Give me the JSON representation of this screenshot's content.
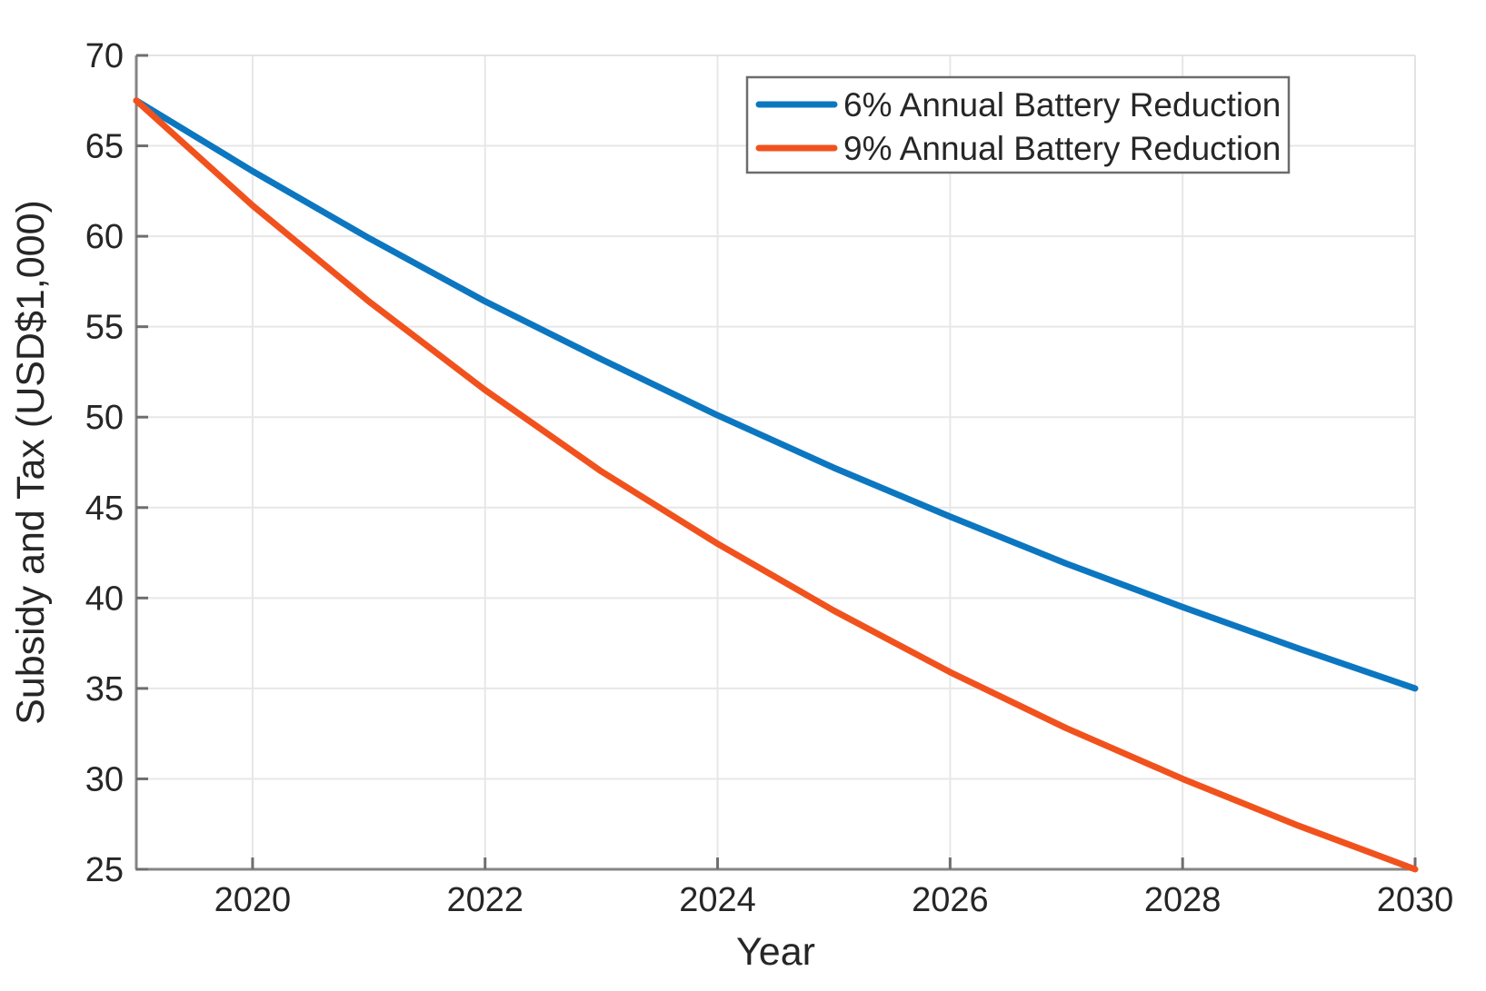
{
  "figure": {
    "background": "#ffffff"
  },
  "chart_data": {
    "type": "line",
    "title": "",
    "xlabel": "Year",
    "ylabel": "Subsidy and Tax (USD$1,000)",
    "x": [
      2019,
      2020,
      2021,
      2022,
      2023,
      2024,
      2025,
      2026,
      2027,
      2028,
      2029,
      2030
    ],
    "series": [
      {
        "name": "6% Annual Battery Reduction",
        "color": "#0c77c0",
        "values": [
          67.5,
          63.6,
          59.9,
          56.4,
          53.2,
          50.1,
          47.2,
          44.5,
          41.9,
          39.5,
          37.2,
          35.0
        ]
      },
      {
        "name": "9% Annual Battery Reduction",
        "color": "#f1521d",
        "values": [
          67.5,
          61.7,
          56.4,
          51.5,
          47.0,
          43.0,
          39.3,
          35.9,
          32.8,
          30.0,
          27.4,
          25.0
        ]
      }
    ],
    "xlim": [
      2019,
      2030
    ],
    "ylim": [
      25,
      70
    ],
    "x_ticks": [
      2020,
      2022,
      2024,
      2026,
      2028,
      2030
    ],
    "y_ticks": [
      25,
      30,
      35,
      40,
      45,
      50,
      55,
      60,
      65,
      70
    ],
    "grid": true,
    "legend": {
      "position": "top-right",
      "border": true,
      "entries": [
        "6% Annual Battery Reduction",
        "9% Annual Battery Reduction"
      ]
    }
  },
  "style": {
    "axis_color": "#858585",
    "box_light_color": "#e3e3e3",
    "grid_color": "#e7e7e7",
    "tick_color": "#6e6e6e",
    "text_color": "#262626",
    "legend_border_color": "#6c6c6c",
    "legend_background": "#ffffff",
    "line_width": 7
  }
}
